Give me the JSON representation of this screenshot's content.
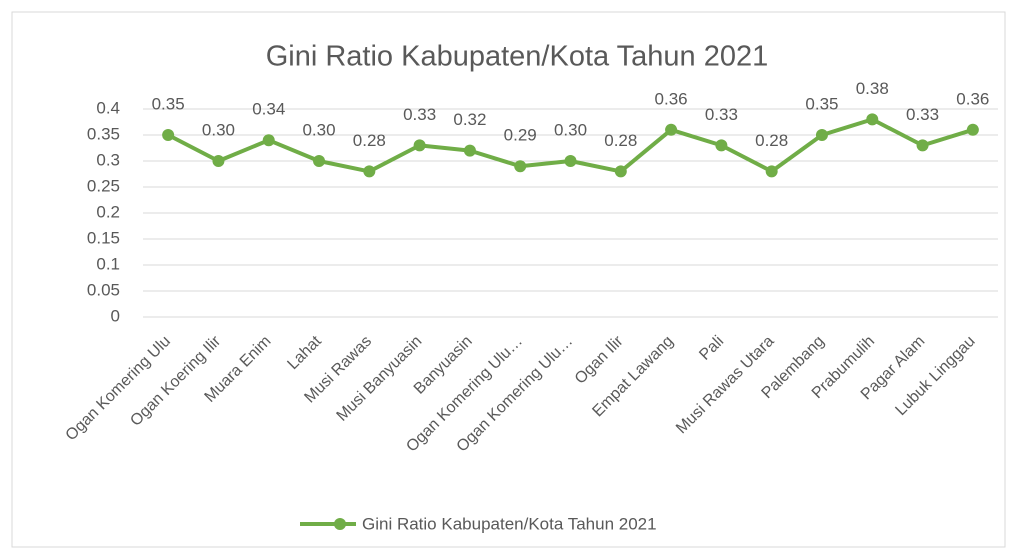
{
  "chart_data": {
    "type": "line",
    "title": "Gini Ratio Kabupaten/Kota Tahun 2021",
    "categories": [
      "Ogan Komering Ulu",
      "Ogan Koering Ilir",
      "Muara Enim",
      "Lahat",
      "Musi Rawas",
      "Musi Banyuasin",
      "Banyuasin",
      "Ogan Komering Ulu…",
      "Ogan Komering Ulu…",
      "Ogan Ilir",
      "Empat Lawang",
      "Pali",
      "Musi Rawas Utara",
      "Palembang",
      "Prabumulih",
      "Pagar Alam",
      "Lubuk Linggau"
    ],
    "series": [
      {
        "name": "Gini Ratio Kabupaten/Kota Tahun 2021",
        "color": "#70ad47",
        "values": [
          0.35,
          0.3,
          0.34,
          0.3,
          0.28,
          0.33,
          0.32,
          0.29,
          0.3,
          0.28,
          0.36,
          0.33,
          0.28,
          0.35,
          0.38,
          0.33,
          0.36
        ],
        "value_labels": [
          "0.35",
          "0.30",
          "0.34",
          "0.30",
          "0.28",
          "0.33",
          "0.32",
          "0.29",
          "0.30",
          "0.28",
          "0.36",
          "0.33",
          "0.28",
          "0.35",
          "0.38",
          "0.33",
          "0.36"
        ]
      }
    ],
    "ylim": [
      0,
      0.4
    ],
    "yticks": [
      0,
      0.05,
      0.1,
      0.15,
      0.2,
      0.25,
      0.3,
      0.35,
      0.4
    ],
    "grid": true,
    "legend": "bottom"
  }
}
